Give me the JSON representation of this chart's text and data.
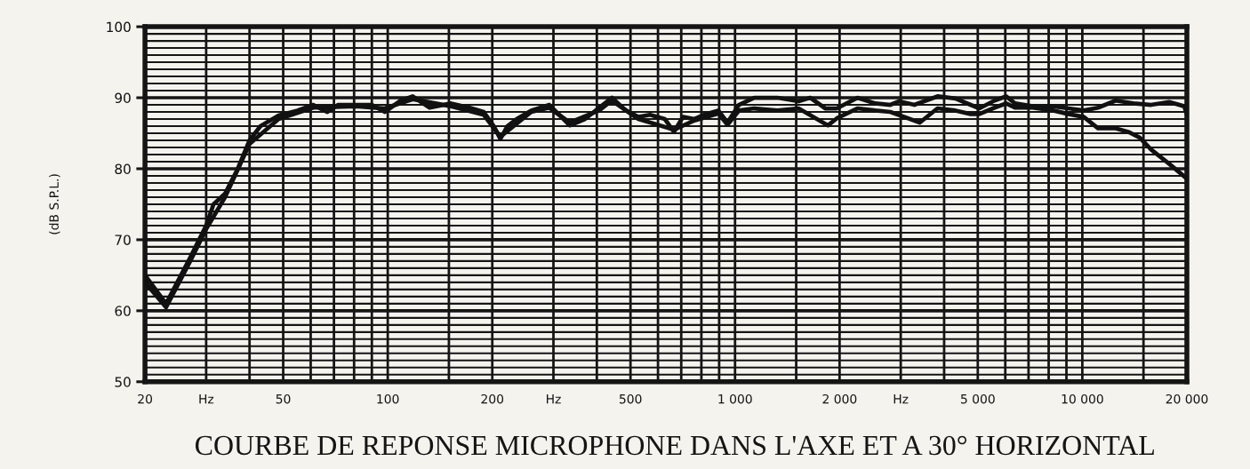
{
  "chart_data": {
    "type": "line",
    "title": "COURBE DE REPONSE MICROPHONE DANS L'AXE ET A 30° HORIZONTAL",
    "ylabel": "(dB S.P.L.)",
    "log": "x",
    "grid": true,
    "xlim": [
      20,
      20000
    ],
    "ylim": [
      50,
      100
    ],
    "xticks": [
      20,
      {
        "value": 30,
        "label": "Hz"
      },
      {
        "value": 40,
        "label": null
      },
      50,
      {
        "value": 60,
        "label": null
      },
      {
        "value": 70,
        "label": null
      },
      {
        "value": 80,
        "label": null
      },
      {
        "value": 90,
        "label": null
      },
      100,
      {
        "value": 150,
        "label": null
      },
      200,
      {
        "value": 300,
        "label": "Hz"
      },
      {
        "value": 400,
        "label": null
      },
      500,
      {
        "value": 600,
        "label": null
      },
      {
        "value": 700,
        "label": null
      },
      {
        "value": 800,
        "label": null
      },
      {
        "value": 900,
        "label": null
      },
      {
        "value": 1000,
        "label": "1 000"
      },
      {
        "value": 1500,
        "label": null
      },
      {
        "value": 2000,
        "label": "2 000"
      },
      {
        "value": 3000,
        "label": "Hz"
      },
      {
        "value": 4000,
        "label": null
      },
      {
        "value": 5000,
        "label": "5 000"
      },
      {
        "value": 6000,
        "label": null
      },
      {
        "value": 7000,
        "label": null
      },
      {
        "value": 8000,
        "label": null
      },
      {
        "value": 9000,
        "label": null
      },
      {
        "value": 10000,
        "label": "10 000"
      },
      {
        "value": 15000,
        "label": null
      },
      {
        "value": 20000,
        "label": "20 000"
      }
    ],
    "yticks": [
      50,
      {
        "value": 51,
        "label": null
      },
      {
        "value": 52,
        "label": null
      },
      {
        "value": 53,
        "label": null
      },
      {
        "value": 54,
        "label": null
      },
      {
        "value": 55,
        "label": null
      },
      {
        "value": 56,
        "label": null
      },
      {
        "value": 57,
        "label": null
      },
      {
        "value": 58,
        "label": null
      },
      {
        "value": 59,
        "label": null
      },
      60,
      {
        "value": 61,
        "label": null
      },
      {
        "value": 62,
        "label": null
      },
      {
        "value": 63,
        "label": null
      },
      {
        "value": 64,
        "label": null
      },
      {
        "value": 65,
        "label": null
      },
      {
        "value": 66,
        "label": null
      },
      {
        "value": 67,
        "label": null
      },
      {
        "value": 68,
        "label": null
      },
      {
        "value": 69,
        "label": null
      },
      70,
      {
        "value": 71,
        "label": null
      },
      {
        "value": 72,
        "label": null
      },
      {
        "value": 73,
        "label": null
      },
      {
        "value": 74,
        "label": null
      },
      {
        "value": 75,
        "label": null
      },
      {
        "value": 76,
        "label": null
      },
      {
        "value": 77,
        "label": null
      },
      {
        "value": 78,
        "label": null
      },
      {
        "value": 79,
        "label": null
      },
      80,
      {
        "value": 81,
        "label": null
      },
      {
        "value": 82,
        "label": null
      },
      {
        "value": 83,
        "label": null
      },
      {
        "value": 84,
        "label": null
      },
      {
        "value": 85,
        "label": null
      },
      {
        "value": 86,
        "label": null
      },
      {
        "value": 87,
        "label": null
      },
      {
        "value": 88,
        "label": null
      },
      {
        "value": 89,
        "label": null
      },
      90,
      {
        "value": 91,
        "label": null
      },
      {
        "value": 92,
        "label": null
      },
      {
        "value": 93,
        "label": null
      },
      {
        "value": 94,
        "label": null
      },
      {
        "value": 95,
        "label": null
      },
      {
        "value": 96,
        "label": null
      },
      {
        "value": 97,
        "label": null
      },
      {
        "value": 98,
        "label": null
      },
      {
        "value": 99,
        "label": null
      },
      100
    ],
    "series": [
      {
        "color": "#111111",
        "x": [
          20,
          23,
          27,
          30,
          31.5,
          34,
          37,
          40,
          43,
          48.5,
          55,
          61,
          67,
          72,
          81,
          90,
          98,
          109,
          118,
          132,
          152,
          172,
          189,
          202,
          211,
          221,
          235,
          259,
          292,
          310,
          334,
          370,
          406,
          442,
          485,
          527,
          569,
          628,
          667,
          708,
          764,
          824,
          895,
          951,
          1026,
          1135,
          1324,
          1524,
          1646,
          1819,
          1964,
          2250,
          2535,
          2800,
          2972,
          3284,
          3828,
          4310,
          4766,
          5054,
          5586,
          6030,
          6398,
          7196,
          8242,
          9120,
          10094,
          11092,
          12474,
          14030,
          15780,
          17780,
          19640,
          20000
        ],
        "values": [
          65,
          61,
          67.5,
          72,
          75,
          76.5,
          80,
          84,
          86,
          87.5,
          88.2,
          89,
          88,
          89,
          89,
          89,
          88,
          89.6,
          90.2,
          88.6,
          89.2,
          88.6,
          88,
          86,
          84.2,
          86,
          87,
          88.2,
          89,
          87.7,
          86.1,
          87,
          88.6,
          90,
          88.2,
          87.3,
          87.6,
          87,
          85.2,
          87.3,
          87,
          87.7,
          88.2,
          86.5,
          89,
          90,
          90,
          89.5,
          90,
          88.5,
          88.5,
          90,
          89.2,
          89,
          89.5,
          89,
          90.2,
          89.9,
          89,
          88.5,
          89.6,
          90.2,
          89.2,
          88.8,
          88.8,
          88.5,
          88.2,
          88.6,
          89.6,
          89.2,
          89,
          89.4,
          88.8,
          87.7
        ]
      },
      {
        "color": "#111111",
        "x": [
          20,
          23,
          27,
          30,
          34,
          40,
          48.5,
          61,
          81,
          98,
          118,
          152,
          189,
          211,
          259,
          292,
          334,
          406,
          442,
          527,
          667,
          764,
          895,
          951,
          1026,
          1135,
          1324,
          1524,
          1852,
          1964,
          2250,
          2535,
          2800,
          3404,
          3828,
          4310,
          4766,
          5054,
          5586,
          6030,
          6398,
          7196,
          8242,
          9120,
          10094,
          11092,
          12474,
          13552,
          14620,
          15780,
          17780,
          20000
        ],
        "values": [
          64,
          60.5,
          67,
          71.5,
          76,
          83.5,
          87,
          88.6,
          88.8,
          88.5,
          89.8,
          88.8,
          87.6,
          84.5,
          88,
          88.6,
          86.5,
          88.2,
          89.6,
          87,
          85.5,
          86.8,
          87.8,
          86.2,
          88.2,
          88.5,
          88.2,
          88.5,
          86.1,
          87.1,
          88.5,
          88.2,
          88,
          86.5,
          88.5,
          88.2,
          87.7,
          87.7,
          88.6,
          89.2,
          88.6,
          88.6,
          88.2,
          87.7,
          87.3,
          85.7,
          85.7,
          85.2,
          84.4,
          82.7,
          80.7,
          78.6
        ]
      }
    ]
  }
}
